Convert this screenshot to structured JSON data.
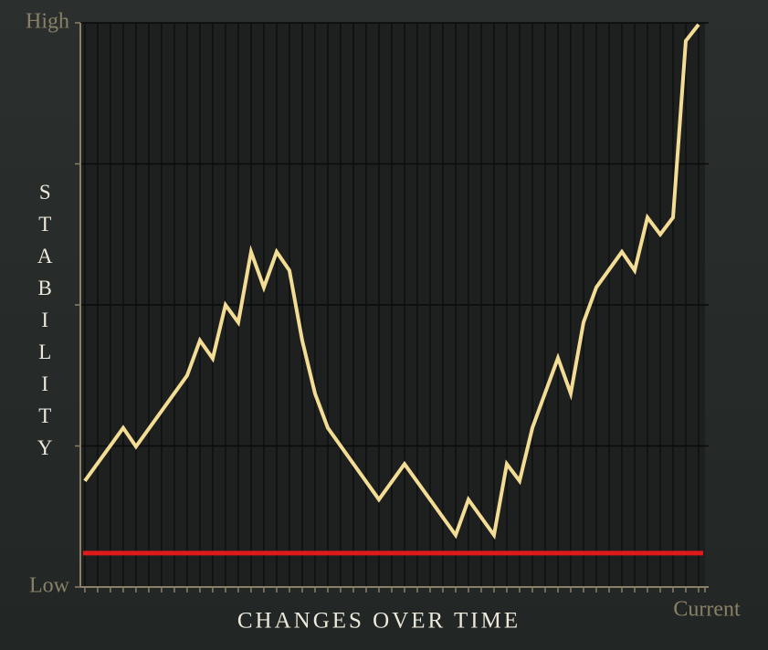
{
  "chart_data": {
    "type": "line",
    "x_label": "CHANGES OVER TIME",
    "y_label": "STABILITY",
    "x": [
      0,
      3,
      4,
      8,
      9,
      10,
      11,
      12,
      13,
      14,
      15,
      16,
      17,
      18,
      19,
      23,
      25,
      29,
      30,
      32,
      33,
      34,
      35,
      37,
      38,
      39,
      40,
      42,
      43,
      44,
      45,
      46,
      47,
      48
    ],
    "series": [
      {
        "color": "#f3dc94",
        "values": [
          18.8,
          28.2,
          24.9,
          37.5,
          43.7,
          40.5,
          50,
          46.9,
          59.4,
          53.1,
          59.4,
          56.1,
          43.7,
          34.3,
          28.2,
          15.5,
          21.8,
          9.2,
          15.5,
          9.2,
          21.8,
          18.8,
          28.2,
          40.6,
          34.3,
          46.9,
          53.1,
          59.4,
          56.1,
          65.5,
          62.5,
          65.5,
          96.8,
          99.7
        ]
      }
    ],
    "threshold": 6,
    "threshold_color": "#e0191b",
    "xlim": [
      -0.35,
      48.5
    ],
    "ylim": [
      0,
      100
    ],
    "xticks": [
      0,
      1,
      2,
      3,
      4,
      5,
      6,
      7,
      8,
      9,
      10,
      11,
      12,
      13,
      14,
      15,
      16,
      17,
      18,
      19,
      20,
      21,
      22,
      23,
      24,
      25,
      26,
      27,
      28,
      29,
      30,
      31,
      32,
      33,
      34,
      35,
      36,
      37,
      38,
      39,
      40,
      41,
      42,
      43,
      44,
      45,
      46,
      47,
      48,
      {
        "value": 48.5,
        "label": "Current"
      }
    ],
    "yticks": [
      {
        "value": 0,
        "label": "Low"
      },
      {
        "value": 25,
        "label": null
      },
      {
        "value": 50,
        "label": null
      },
      {
        "value": 75,
        "label": null
      },
      {
        "value": 100,
        "label": "High"
      }
    ],
    "grid": true
  }
}
